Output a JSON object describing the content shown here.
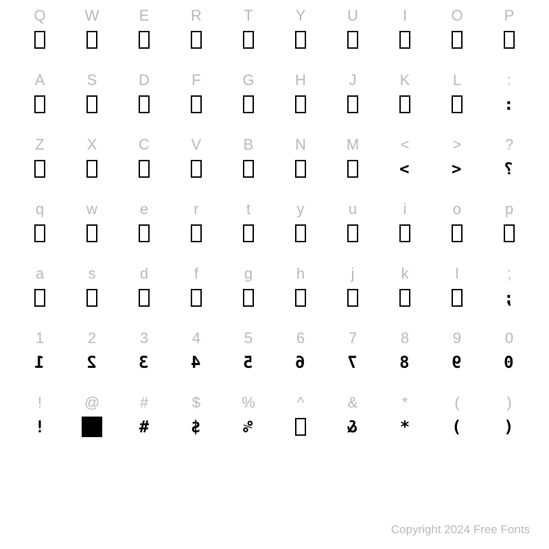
{
  "footer": "Copyright 2024 Free Fonts",
  "grid_cols": 10,
  "label_color": "#b8b8b8",
  "glyph_color": "#000000",
  "background": "#ffffff",
  "rows": [
    {
      "labels": [
        "Q",
        "W",
        "E",
        "R",
        "T",
        "Y",
        "U",
        "I",
        "O",
        "P"
      ],
      "glyphs": [
        "tofu",
        "tofu",
        "tofu",
        "tofu",
        "tofu",
        "tofu",
        "tofu",
        "tofu",
        "tofu",
        "tofu"
      ]
    },
    {
      "labels": [
        "A",
        "S",
        "D",
        "F",
        "G",
        "H",
        "J",
        "K",
        "L",
        ":"
      ],
      "glyphs": [
        "tofu",
        "tofu",
        "tofu",
        "tofu",
        "tofu",
        "tofu",
        "tofu",
        "tofu",
        "tofu",
        "pix::"
      ]
    },
    {
      "labels": [
        "Z",
        "X",
        "C",
        "V",
        "B",
        "N",
        "M",
        "<",
        ">",
        "?"
      ],
      "glyphs": [
        "tofu",
        "tofu",
        "tofu",
        "tofu",
        "tofu",
        "tofu",
        "tofu",
        "pix:>",
        "pix:<",
        "pix:?"
      ]
    },
    {
      "labels": [
        "q",
        "w",
        "e",
        "r",
        "t",
        "y",
        "u",
        "i",
        "o",
        "p"
      ],
      "glyphs": [
        "tofu",
        "tofu",
        "tofu",
        "tofu",
        "tofu",
        "tofu",
        "tofu",
        "tofu",
        "tofu",
        "tofu"
      ]
    },
    {
      "labels": [
        "a",
        "s",
        "d",
        "f",
        "g",
        "h",
        "j",
        "k",
        "l",
        ";"
      ],
      "glyphs": [
        "tofu",
        "tofu",
        "tofu",
        "tofu",
        "tofu",
        "tofu",
        "tofu",
        "tofu",
        "tofu",
        "pix:;"
      ]
    },
    {
      "labels": [
        "1",
        "2",
        "3",
        "4",
        "5",
        "6",
        "7",
        "8",
        "9",
        "0"
      ],
      "glyphs": [
        "pix:1",
        "pix:2",
        "pix:3",
        "pix:4",
        "pix:5",
        "pix:6",
        "pix:7",
        "pix:8",
        "pix:9",
        "pix:0"
      ]
    },
    {
      "labels": [
        "!",
        "@",
        "#",
        "$",
        "%",
        "^",
        "&",
        "*",
        "(",
        ")"
      ],
      "glyphs": [
        "pixn:!",
        "fill",
        "pixn:#",
        "pix:$",
        "pix:%",
        "tofu",
        "pix:&",
        "pixn:*",
        "pix:)",
        "pix:("
      ]
    }
  ]
}
